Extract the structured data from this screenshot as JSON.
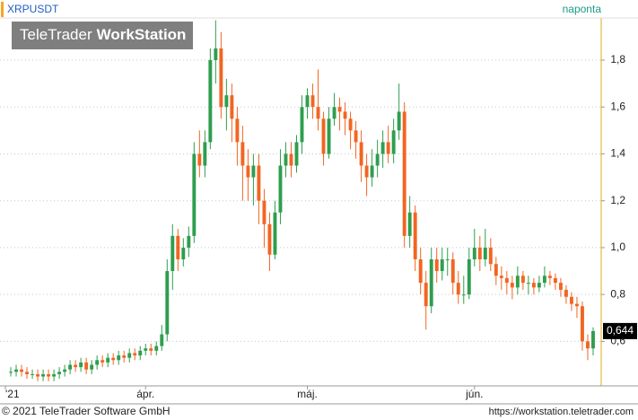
{
  "chart_data": {
    "type": "candlestick",
    "title": "XRPUSDT",
    "interval": "naponta",
    "watermark": {
      "brand": "TeleTrader",
      "product": "WorkStation"
    },
    "footer": {
      "copyright": "© 2021 TeleTrader Software GmbH",
      "url": "https://workstation.teletrader.com"
    },
    "up_color": "#2e9e4f",
    "down_color": "#f26522",
    "grid": true,
    "xlim": [
      -2,
      109.5
    ],
    "xticks": [
      {
        "value": -1,
        "label": "'21"
      },
      {
        "value": 25,
        "label": "ápr."
      },
      {
        "value": 55,
        "label": "máj."
      },
      {
        "value": 86,
        "label": "jún."
      }
    ],
    "ylim": [
      0.41,
      1.98
    ],
    "yticks": [
      {
        "value": 0.6,
        "label": "0,6"
      },
      {
        "value": 0.8,
        "label": "0,8"
      },
      {
        "value": 1.0,
        "label": "1,0"
      },
      {
        "value": 1.2,
        "label": "1,2"
      },
      {
        "value": 1.4,
        "label": "1,4"
      },
      {
        "value": 1.6,
        "label": "1,6"
      },
      {
        "value": 1.8,
        "label": "1,8"
      }
    ],
    "last_price": {
      "value": 0.644,
      "label": "0,644"
    },
    "open": [
      0.47,
      0.47,
      0.48,
      0.47,
      0.46,
      0.46,
      0.45,
      0.46,
      0.45,
      0.46,
      0.47,
      0.48,
      0.5,
      0.49,
      0.51,
      0.48,
      0.5,
      0.52,
      0.51,
      0.53,
      0.52,
      0.54,
      0.53,
      0.55,
      0.54,
      0.56,
      0.57,
      0.56,
      0.58,
      0.63,
      0.9,
      1.05,
      0.95,
      1.0,
      1.05,
      1.4,
      1.35,
      1.45,
      1.8,
      1.85,
      1.6,
      1.65,
      1.55,
      1.45,
      1.35,
      1.3,
      1.35,
      1.2,
      1.1,
      0.97,
      1.15,
      1.35,
      1.4,
      1.35,
      1.45,
      1.6,
      1.65,
      1.6,
      1.55,
      1.4,
      1.55,
      1.6,
      1.58,
      1.55,
      1.5,
      1.45,
      1.35,
      1.3,
      1.35,
      1.4,
      1.45,
      1.4,
      1.5,
      1.58,
      1.05,
      1.15,
      0.95,
      0.85,
      0.75,
      0.95,
      0.9,
      0.95,
      0.95,
      0.85,
      0.8,
      0.8,
      0.95,
      1.0,
      0.95,
      1.0,
      0.93,
      0.88,
      0.87,
      0.85,
      0.83,
      0.88,
      0.85,
      0.85,
      0.83,
      0.85,
      0.88,
      0.87,
      0.85,
      0.82,
      0.79,
      0.76,
      0.75,
      0.6,
      0.57
    ],
    "high": [
      0.49,
      0.5,
      0.5,
      0.49,
      0.48,
      0.48,
      0.48,
      0.48,
      0.48,
      0.49,
      0.5,
      0.52,
      0.52,
      0.53,
      0.53,
      0.52,
      0.54,
      0.54,
      0.55,
      0.55,
      0.56,
      0.56,
      0.57,
      0.57,
      0.58,
      0.59,
      0.59,
      0.6,
      0.67,
      0.95,
      1.1,
      1.08,
      1.04,
      1.09,
      1.45,
      1.5,
      1.5,
      1.85,
      1.97,
      1.92,
      1.72,
      1.7,
      1.6,
      1.52,
      1.42,
      1.4,
      1.4,
      1.25,
      1.15,
      1.2,
      1.42,
      1.45,
      1.45,
      1.48,
      1.65,
      1.68,
      1.7,
      1.76,
      1.58,
      1.6,
      1.66,
      1.64,
      1.62,
      1.58,
      1.54,
      1.5,
      1.4,
      1.42,
      1.46,
      1.5,
      1.52,
      1.55,
      1.7,
      1.62,
      1.22,
      1.18,
      1.0,
      0.9,
      1.0,
      1.0,
      1.0,
      1.0,
      0.98,
      0.9,
      0.88,
      1.0,
      1.08,
      1.05,
      1.08,
      1.04,
      0.96,
      0.92,
      0.9,
      0.88,
      0.92,
      0.9,
      0.88,
      0.87,
      0.88,
      0.92,
      0.9,
      0.89,
      0.87,
      0.84,
      0.81,
      0.79,
      0.77,
      0.63,
      0.66
    ],
    "low": [
      0.45,
      0.45,
      0.45,
      0.44,
      0.44,
      0.43,
      0.43,
      0.43,
      0.43,
      0.44,
      0.45,
      0.46,
      0.47,
      0.47,
      0.46,
      0.46,
      0.48,
      0.49,
      0.49,
      0.5,
      0.5,
      0.51,
      0.51,
      0.52,
      0.52,
      0.54,
      0.54,
      0.54,
      0.56,
      0.6,
      0.82,
      0.9,
      0.92,
      0.96,
      1.02,
      1.3,
      1.3,
      1.42,
      1.7,
      1.55,
      1.5,
      1.45,
      1.35,
      1.2,
      1.2,
      1.18,
      1.1,
      1.0,
      0.9,
      0.95,
      1.1,
      1.3,
      1.3,
      1.32,
      1.4,
      1.55,
      1.55,
      1.5,
      1.35,
      1.38,
      1.52,
      1.5,
      1.48,
      1.42,
      1.38,
      1.28,
      1.22,
      1.26,
      1.3,
      1.34,
      1.36,
      1.36,
      1.46,
      1.0,
      1.0,
      0.9,
      0.8,
      0.65,
      0.72,
      0.85,
      0.86,
      0.88,
      0.8,
      0.76,
      0.76,
      0.78,
      0.92,
      0.9,
      0.92,
      0.9,
      0.84,
      0.82,
      0.8,
      0.78,
      0.8,
      0.82,
      0.8,
      0.8,
      0.81,
      0.83,
      0.84,
      0.82,
      0.79,
      0.76,
      0.73,
      0.7,
      0.56,
      0.52,
      0.54
    ],
    "close": [
      0.47,
      0.48,
      0.47,
      0.46,
      0.46,
      0.45,
      0.46,
      0.45,
      0.46,
      0.47,
      0.48,
      0.5,
      0.49,
      0.51,
      0.48,
      0.5,
      0.52,
      0.51,
      0.53,
      0.52,
      0.54,
      0.53,
      0.55,
      0.54,
      0.56,
      0.57,
      0.56,
      0.58,
      0.63,
      0.9,
      1.05,
      0.95,
      1.0,
      1.05,
      1.4,
      1.35,
      1.45,
      1.8,
      1.85,
      1.6,
      1.65,
      1.55,
      1.45,
      1.35,
      1.3,
      1.35,
      1.2,
      1.1,
      0.97,
      1.15,
      1.35,
      1.4,
      1.35,
      1.45,
      1.6,
      1.65,
      1.6,
      1.55,
      1.4,
      1.55,
      1.6,
      1.58,
      1.55,
      1.5,
      1.45,
      1.35,
      1.3,
      1.35,
      1.4,
      1.45,
      1.4,
      1.5,
      1.58,
      1.05,
      1.15,
      0.95,
      0.85,
      0.75,
      0.95,
      0.9,
      0.95,
      0.95,
      0.85,
      0.8,
      0.8,
      0.95,
      1.0,
      0.95,
      1.0,
      0.93,
      0.88,
      0.87,
      0.85,
      0.83,
      0.88,
      0.85,
      0.85,
      0.83,
      0.85,
      0.88,
      0.87,
      0.85,
      0.82,
      0.79,
      0.76,
      0.75,
      0.6,
      0.57,
      0.644
    ]
  }
}
